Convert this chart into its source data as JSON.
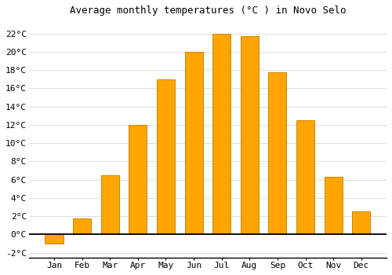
{
  "title": "Average monthly temperatures (°C ) in Novo Selo",
  "months": [
    "Jan",
    "Feb",
    "Mar",
    "Apr",
    "May",
    "Jun",
    "Jul",
    "Aug",
    "Sep",
    "Oct",
    "Nov",
    "Dec"
  ],
  "values": [
    -1.0,
    1.8,
    6.5,
    12.0,
    17.0,
    20.0,
    22.0,
    21.7,
    17.8,
    12.5,
    6.3,
    2.5
  ],
  "bar_color": "#FFA500",
  "bar_edge_color": "#CC8800",
  "background_color": "#FFFFFF",
  "grid_color": "#DDDDDD",
  "ylim": [
    -2.5,
    23.5
  ],
  "yticks": [
    -2,
    0,
    2,
    4,
    6,
    8,
    10,
    12,
    14,
    16,
    18,
    20,
    22
  ],
  "ytick_labels": [
    "-2°C",
    "0°C",
    "2°C",
    "4°C",
    "6°C",
    "8°C",
    "10°C",
    "12°C",
    "14°C",
    "16°C",
    "18°C",
    "20°C",
    "22°C"
  ],
  "title_fontsize": 9,
  "tick_fontsize": 8,
  "font_family": "monospace"
}
